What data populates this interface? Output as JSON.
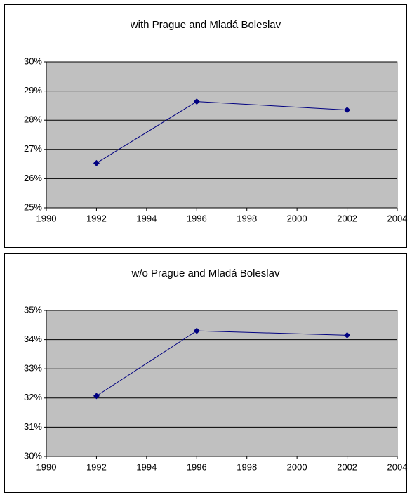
{
  "chart_data": [
    {
      "type": "line",
      "title": "with Prague and Mladá Boleslav",
      "x": [
        1992,
        1996,
        2002
      ],
      "values": [
        26.53,
        28.64,
        28.35
      ],
      "color": "#000080",
      "xlim": [
        1990,
        2004
      ],
      "xticks": [
        1990,
        1992,
        1994,
        1996,
        1998,
        2000,
        2002,
        2004
      ],
      "ylim": [
        25,
        30
      ],
      "yticks": [
        {
          "value": 25,
          "label": "25%"
        },
        {
          "value": 26,
          "label": "26%"
        },
        {
          "value": 27,
          "label": "27%"
        },
        {
          "value": 28,
          "label": "28%"
        },
        {
          "value": 29,
          "label": "29%"
        },
        {
          "value": 30,
          "label": "30%"
        }
      ],
      "grid": true,
      "plot_background": "#c0c0c0"
    },
    {
      "type": "line",
      "title": "w/o Prague and Mladá Boleslav",
      "x": [
        1992,
        1996,
        2002
      ],
      "values": [
        32.07,
        34.3,
        34.15
      ],
      "color": "#000080",
      "xlim": [
        1990,
        2004
      ],
      "xticks": [
        1990,
        1992,
        1994,
        1996,
        1998,
        2000,
        2002,
        2004
      ],
      "ylim": [
        30,
        35
      ],
      "yticks": [
        {
          "value": 30,
          "label": "30%"
        },
        {
          "value": 31,
          "label": "31%"
        },
        {
          "value": 32,
          "label": "32%"
        },
        {
          "value": 33,
          "label": "33%"
        },
        {
          "value": 34,
          "label": "34%"
        },
        {
          "value": 35,
          "label": "35%"
        }
      ],
      "grid": true,
      "plot_background": "#c0c0c0"
    }
  ]
}
